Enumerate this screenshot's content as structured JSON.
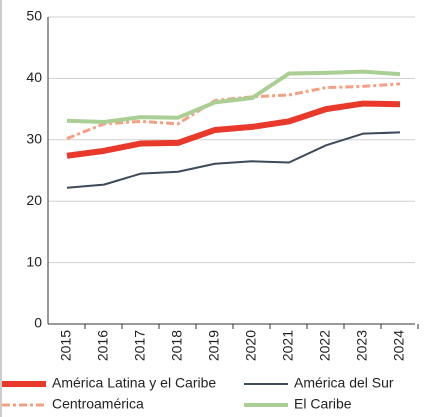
{
  "chart_data": {
    "type": "line",
    "categories": [
      "2015",
      "2016",
      "2017",
      "2018",
      "2019",
      "2020",
      "2021",
      "2022",
      "2023",
      "2024"
    ],
    "series": [
      {
        "name": "América Latina y el Caribe",
        "color": "#e8392b",
        "values": [
          27.4,
          28.2,
          29.4,
          29.5,
          31.6,
          32.1,
          33.0,
          35.0,
          35.9,
          35.8
        ]
      },
      {
        "name": "América del Sur",
        "color": "#3d4a5c",
        "values": [
          22.2,
          22.7,
          24.5,
          24.8,
          26.1,
          26.5,
          26.3,
          29.1,
          31.0,
          31.2
        ]
      },
      {
        "name": "Centroamérica",
        "color": "#f4a082",
        "dashed": true,
        "values": [
          30.2,
          32.6,
          33.0,
          32.6,
          36.4,
          37.0,
          37.3,
          38.5,
          38.7,
          39.1
        ]
      },
      {
        "name": "El Caribe",
        "color": "#a9cf94",
        "values": [
          33.1,
          32.9,
          33.7,
          33.6,
          36.1,
          36.8,
          40.8,
          40.9,
          41.1,
          40.7
        ]
      }
    ],
    "ylim": [
      0,
      50
    ],
    "yticks": [
      0,
      10,
      20,
      30,
      40,
      50
    ],
    "grid": true
  }
}
